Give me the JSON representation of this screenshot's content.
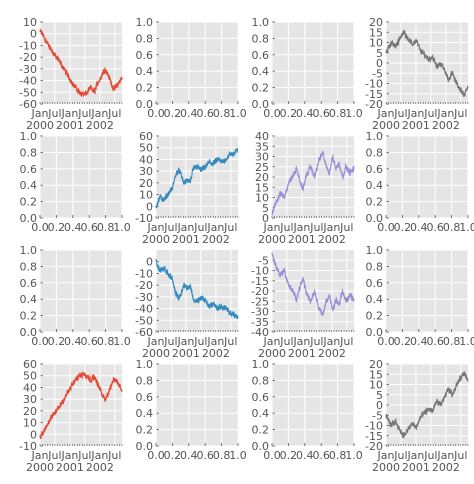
{
  "chart_data": [
    {
      "panel": "r1c1",
      "type": "line",
      "xaxis": "date",
      "x_start": "2000-01-01",
      "x_end": "2002-09-26",
      "x_tick_labels": [
        "Jan",
        "Jul",
        "Jan",
        "Jul",
        "Jan",
        "Jul"
      ],
      "x_year_labels": [
        "2000",
        "2001",
        "2002"
      ],
      "ylim": [
        -60,
        10
      ],
      "y_ticks": [
        10,
        0,
        -10,
        -20,
        -30,
        -40,
        -50,
        -60
      ],
      "color": "#E24A33",
      "keypoints": [
        [
          0,
          2
        ],
        [
          0.03,
          0
        ],
        [
          0.07,
          -6
        ],
        [
          0.12,
          -12
        ],
        [
          0.18,
          -18
        ],
        [
          0.24,
          -24
        ],
        [
          0.3,
          -31
        ],
        [
          0.36,
          -38
        ],
        [
          0.42,
          -45
        ],
        [
          0.48,
          -50
        ],
        [
          0.54,
          -52
        ],
        [
          0.58,
          -50
        ],
        [
          0.62,
          -46
        ],
        [
          0.66,
          -50
        ],
        [
          0.7,
          -43
        ],
        [
          0.75,
          -36
        ],
        [
          0.79,
          -30
        ],
        [
          0.83,
          -35
        ],
        [
          0.87,
          -42
        ],
        [
          0.9,
          -48
        ],
        [
          0.94,
          -44
        ],
        [
          1.0,
          -38
        ]
      ]
    },
    {
      "panel": "r1c2",
      "type": "empty",
      "ylim": [
        0,
        1
      ],
      "y_ticks": [
        0,
        0.2,
        0.4,
        0.6,
        0.8,
        1
      ],
      "xlim": [
        0,
        1
      ],
      "x_ticks": [
        0,
        0.2,
        0.4,
        0.6,
        0.8,
        1
      ],
      "y_tick_labels": [
        "0.0",
        "0.2",
        "0.4",
        "0.6",
        "0.8",
        "1.0"
      ],
      "x_tick_labels": [
        "0.0",
        "0.2",
        "0.4",
        "0.6",
        "0.8",
        "1.0"
      ]
    },
    {
      "panel": "r1c3",
      "type": "empty",
      "ylim": [
        0,
        1
      ],
      "y_ticks": [
        0,
        0.2,
        0.4,
        0.6,
        0.8,
        1
      ],
      "xlim": [
        0,
        1
      ],
      "x_ticks": [
        0,
        0.2,
        0.4,
        0.6,
        0.8,
        1
      ],
      "y_tick_labels": [
        "0.0",
        "0.2",
        "0.4",
        "0.6",
        "0.8",
        "1.0"
      ],
      "x_tick_labels": [
        "0.0",
        "0.2",
        "0.4",
        "0.6",
        "0.8",
        "1.0"
      ]
    },
    {
      "panel": "r1c4",
      "type": "line",
      "xaxis": "date",
      "x_start": "2000-01-01",
      "x_end": "2002-09-26",
      "x_tick_labels": [
        "Jan",
        "Jul",
        "Jan",
        "Jul",
        "Jan",
        "Jul"
      ],
      "x_year_labels": [
        "2000",
        "2001",
        "2002"
      ],
      "ylim": [
        -20,
        20
      ],
      "y_ticks": [
        20,
        15,
        10,
        5,
        0,
        -5,
        -10,
        -15,
        -20
      ],
      "color": "#777777",
      "keypoints": [
        [
          0,
          5
        ],
        [
          0.06,
          10
        ],
        [
          0.12,
          8
        ],
        [
          0.18,
          13
        ],
        [
          0.22,
          15
        ],
        [
          0.27,
          12
        ],
        [
          0.32,
          9
        ],
        [
          0.37,
          11
        ],
        [
          0.42,
          6
        ],
        [
          0.47,
          4
        ],
        [
          0.52,
          2
        ],
        [
          0.57,
          3
        ],
        [
          0.62,
          -2
        ],
        [
          0.66,
          0
        ],
        [
          0.71,
          -3
        ],
        [
          0.76,
          -8
        ],
        [
          0.81,
          -5
        ],
        [
          0.86,
          -10
        ],
        [
          0.91,
          -13
        ],
        [
          0.96,
          -16
        ],
        [
          1.0,
          -11
        ]
      ]
    },
    {
      "panel": "r2c1",
      "type": "empty",
      "ylim": [
        0,
        1
      ],
      "y_ticks": [
        0,
        0.2,
        0.4,
        0.6,
        0.8,
        1
      ],
      "xlim": [
        0,
        1
      ],
      "x_ticks": [
        0,
        0.2,
        0.4,
        0.6,
        0.8,
        1
      ],
      "y_tick_labels": [
        "0.0",
        "0.2",
        "0.4",
        "0.6",
        "0.8",
        "1.0"
      ],
      "x_tick_labels": [
        "0.0",
        "0.2",
        "0.4",
        "0.6",
        "0.8",
        "1.0"
      ]
    },
    {
      "panel": "r2c2",
      "type": "line",
      "xaxis": "date",
      "x_start": "2000-01-01",
      "x_end": "2002-09-26",
      "x_tick_labels": [
        "Jan",
        "Jul",
        "Jan",
        "Jul",
        "Jan",
        "Jul"
      ],
      "x_year_labels": [
        "2000",
        "2001",
        "2002"
      ],
      "ylim": [
        -10,
        60
      ],
      "y_ticks": [
        60,
        50,
        40,
        30,
        20,
        10,
        0,
        -10
      ],
      "color": "#348ABD",
      "keypoints": [
        [
          0,
          0
        ],
        [
          0.05,
          8
        ],
        [
          0.1,
          5
        ],
        [
          0.15,
          11
        ],
        [
          0.2,
          15
        ],
        [
          0.24,
          27
        ],
        [
          0.28,
          31
        ],
        [
          0.31,
          26
        ],
        [
          0.34,
          20
        ],
        [
          0.38,
          22
        ],
        [
          0.42,
          21
        ],
        [
          0.46,
          33
        ],
        [
          0.5,
          34
        ],
        [
          0.55,
          31
        ],
        [
          0.6,
          33
        ],
        [
          0.65,
          38
        ],
        [
          0.7,
          36
        ],
        [
          0.75,
          40
        ],
        [
          0.8,
          38
        ],
        [
          0.85,
          40
        ],
        [
          0.9,
          44
        ],
        [
          0.95,
          45
        ],
        [
          1.0,
          48
        ]
      ]
    },
    {
      "panel": "r2c3",
      "type": "line",
      "xaxis": "date",
      "x_start": "2000-01-01",
      "x_end": "2002-09-26",
      "x_tick_labels": [
        "Jan",
        "Jul",
        "Jan",
        "Jul",
        "Jan",
        "Jul"
      ],
      "x_year_labels": [
        "2000",
        "2001",
        "2002"
      ],
      "ylim": [
        0,
        40
      ],
      "y_ticks": [
        40,
        35,
        30,
        25,
        20,
        15,
        10,
        5,
        0
      ],
      "color": "#988ED5",
      "keypoints": [
        [
          0,
          2
        ],
        [
          0.05,
          8
        ],
        [
          0.1,
          12
        ],
        [
          0.15,
          10
        ],
        [
          0.2,
          17
        ],
        [
          0.25,
          20
        ],
        [
          0.3,
          24
        ],
        [
          0.34,
          18
        ],
        [
          0.38,
          14
        ],
        [
          0.42,
          21
        ],
        [
          0.47,
          25
        ],
        [
          0.52,
          20
        ],
        [
          0.57,
          28
        ],
        [
          0.62,
          32
        ],
        [
          0.66,
          25
        ],
        [
          0.7,
          22
        ],
        [
          0.74,
          30
        ],
        [
          0.78,
          24
        ],
        [
          0.82,
          27
        ],
        [
          0.86,
          20
        ],
        [
          0.9,
          25
        ],
        [
          0.95,
          22
        ],
        [
          1.0,
          24
        ]
      ]
    },
    {
      "panel": "r2c4",
      "type": "empty",
      "ylim": [
        0,
        1
      ],
      "y_ticks": [
        0,
        0.2,
        0.4,
        0.6,
        0.8,
        1
      ],
      "xlim": [
        0,
        1
      ],
      "x_ticks": [
        0,
        0.2,
        0.4,
        0.6,
        0.8,
        1
      ],
      "y_tick_labels": [
        "0.0",
        "0.2",
        "0.4",
        "0.6",
        "0.8",
        "1.0"
      ],
      "x_tick_labels": [
        "0.0",
        "0.2",
        "0.4",
        "0.6",
        "0.8",
        "1.0"
      ]
    },
    {
      "panel": "r3c1",
      "type": "empty",
      "ylim": [
        0,
        1
      ],
      "y_ticks": [
        0,
        0.2,
        0.4,
        0.6,
        0.8,
        1
      ],
      "xlim": [
        0,
        1
      ],
      "x_ticks": [
        0,
        0.2,
        0.4,
        0.6,
        0.8,
        1
      ],
      "y_tick_labels": [
        "0.0",
        "0.2",
        "0.4",
        "0.6",
        "0.8",
        "1.0"
      ],
      "x_tick_labels": [
        "0.0",
        "0.2",
        "0.4",
        "0.6",
        "0.8",
        "1.0"
      ]
    },
    {
      "panel": "r3c2",
      "type": "line",
      "xaxis": "date",
      "x_start": "2000-01-01",
      "x_end": "2002-09-26",
      "x_tick_labels": [
        "Jan",
        "Jul",
        "Jan",
        "Jul",
        "Jan",
        "Jul"
      ],
      "x_year_labels": [
        "2000",
        "2001",
        "2002"
      ],
      "ylim": [
        -60,
        10
      ],
      "y_ticks": [
        0,
        -10,
        -20,
        -30,
        -40,
        -50,
        -60
      ],
      "color": "#348ABD",
      "keypoints": [
        [
          0,
          0
        ],
        [
          0.05,
          -8
        ],
        [
          0.1,
          -5
        ],
        [
          0.15,
          -11
        ],
        [
          0.2,
          -15
        ],
        [
          0.24,
          -27
        ],
        [
          0.28,
          -31
        ],
        [
          0.31,
          -26
        ],
        [
          0.34,
          -20
        ],
        [
          0.38,
          -22
        ],
        [
          0.42,
          -21
        ],
        [
          0.46,
          -33
        ],
        [
          0.5,
          -34
        ],
        [
          0.55,
          -31
        ],
        [
          0.6,
          -33
        ],
        [
          0.65,
          -38
        ],
        [
          0.7,
          -36
        ],
        [
          0.75,
          -40
        ],
        [
          0.8,
          -38
        ],
        [
          0.85,
          -40
        ],
        [
          0.9,
          -44
        ],
        [
          0.95,
          -45
        ],
        [
          1.0,
          -48
        ]
      ]
    },
    {
      "panel": "r3c3",
      "type": "line",
      "xaxis": "date",
      "x_start": "2000-01-01",
      "x_end": "2002-09-26",
      "x_tick_labels": [
        "Jan",
        "Jul",
        "Jan",
        "Jul",
        "Jan",
        "Jul"
      ],
      "x_year_labels": [
        "2000",
        "2001",
        "2002"
      ],
      "ylim": [
        -40,
        0
      ],
      "y_ticks": [
        -5,
        -10,
        -15,
        -20,
        -25,
        -30,
        -35,
        -40
      ],
      "color": "#988ED5",
      "keypoints": [
        [
          0,
          -2
        ],
        [
          0.05,
          -8
        ],
        [
          0.1,
          -12
        ],
        [
          0.15,
          -10
        ],
        [
          0.2,
          -17
        ],
        [
          0.25,
          -20
        ],
        [
          0.3,
          -24
        ],
        [
          0.34,
          -18
        ],
        [
          0.38,
          -14
        ],
        [
          0.42,
          -21
        ],
        [
          0.47,
          -25
        ],
        [
          0.52,
          -20
        ],
        [
          0.57,
          -28
        ],
        [
          0.62,
          -32
        ],
        [
          0.66,
          -25
        ],
        [
          0.7,
          -22
        ],
        [
          0.74,
          -30
        ],
        [
          0.78,
          -24
        ],
        [
          0.82,
          -27
        ],
        [
          0.86,
          -20
        ],
        [
          0.9,
          -25
        ],
        [
          0.95,
          -22
        ],
        [
          1.0,
          -24
        ]
      ]
    },
    {
      "panel": "r3c4",
      "type": "empty",
      "ylim": [
        0,
        1
      ],
      "y_ticks": [
        0,
        0.2,
        0.4,
        0.6,
        0.8,
        1
      ],
      "xlim": [
        0,
        1
      ],
      "x_ticks": [
        0,
        0.2,
        0.4,
        0.6,
        0.8,
        1
      ],
      "y_tick_labels": [
        "0.0",
        "0.2",
        "0.4",
        "0.6",
        "0.8",
        "1.0"
      ],
      "x_tick_labels": [
        "0.0",
        "0.2",
        "0.4",
        "0.6",
        "0.8",
        "1.0"
      ]
    },
    {
      "panel": "r4c1",
      "type": "line",
      "xaxis": "date",
      "x_start": "2000-01-01",
      "x_end": "2002-09-26",
      "x_tick_labels": [
        "Jan",
        "Jul",
        "Jan",
        "Jul",
        "Jan",
        "Jul"
      ],
      "x_year_labels": [
        "2000",
        "2001",
        "2002"
      ],
      "ylim": [
        -10,
        60
      ],
      "y_ticks": [
        60,
        50,
        40,
        30,
        20,
        10,
        0,
        -10
      ],
      "color": "#E24A33",
      "keypoints": [
        [
          0,
          -2
        ],
        [
          0.03,
          0
        ],
        [
          0.07,
          6
        ],
        [
          0.12,
          12
        ],
        [
          0.18,
          18
        ],
        [
          0.24,
          24
        ],
        [
          0.3,
          31
        ],
        [
          0.36,
          38
        ],
        [
          0.42,
          45
        ],
        [
          0.48,
          50
        ],
        [
          0.54,
          52
        ],
        [
          0.58,
          50
        ],
        [
          0.62,
          46
        ],
        [
          0.66,
          50
        ],
        [
          0.7,
          43
        ],
        [
          0.75,
          36
        ],
        [
          0.79,
          30
        ],
        [
          0.83,
          35
        ],
        [
          0.87,
          42
        ],
        [
          0.9,
          48
        ],
        [
          0.94,
          44
        ],
        [
          1.0,
          38
        ]
      ]
    },
    {
      "panel": "r4c2",
      "type": "empty",
      "ylim": [
        0,
        1
      ],
      "y_ticks": [
        0,
        0.2,
        0.4,
        0.6,
        0.8,
        1
      ],
      "xlim": [
        0,
        1
      ],
      "x_ticks": [
        0,
        0.2,
        0.4,
        0.6,
        0.8,
        1
      ],
      "y_tick_labels": [
        "0.0",
        "0.2",
        "0.4",
        "0.6",
        "0.8",
        "1.0"
      ],
      "x_tick_labels": [
        "0.0",
        "0.2",
        "0.4",
        "0.6",
        "0.8",
        "1.0"
      ]
    },
    {
      "panel": "r4c3",
      "type": "empty",
      "ylim": [
        0,
        1
      ],
      "y_ticks": [
        0,
        0.2,
        0.4,
        0.6,
        0.8,
        1
      ],
      "xlim": [
        0,
        1
      ],
      "x_ticks": [
        0,
        0.2,
        0.4,
        0.6,
        0.8,
        1
      ],
      "y_tick_labels": [
        "0.0",
        "0.2",
        "0.4",
        "0.6",
        "0.8",
        "1.0"
      ],
      "x_tick_labels": [
        "0.0",
        "0.2",
        "0.4",
        "0.6",
        "0.8",
        "1.0"
      ]
    },
    {
      "panel": "r4c4",
      "type": "line",
      "xaxis": "date",
      "x_start": "2000-01-01",
      "x_end": "2002-09-26",
      "x_tick_labels": [
        "Jan",
        "Jul",
        "Jan",
        "Jul",
        "Jan",
        "Jul"
      ],
      "x_year_labels": [
        "2000",
        "2001",
        "2002"
      ],
      "ylim": [
        -20,
        20
      ],
      "y_ticks": [
        20,
        15,
        10,
        5,
        0,
        -5,
        -10,
        -15,
        -20
      ],
      "color": "#777777",
      "keypoints": [
        [
          0,
          -5
        ],
        [
          0.06,
          -10
        ],
        [
          0.12,
          -8
        ],
        [
          0.18,
          -13
        ],
        [
          0.22,
          -15
        ],
        [
          0.27,
          -12
        ],
        [
          0.32,
          -9
        ],
        [
          0.37,
          -11
        ],
        [
          0.42,
          -6
        ],
        [
          0.47,
          -4
        ],
        [
          0.52,
          -2
        ],
        [
          0.57,
          -3
        ],
        [
          0.62,
          2
        ],
        [
          0.66,
          0
        ],
        [
          0.71,
          3
        ],
        [
          0.76,
          8
        ],
        [
          0.81,
          5
        ],
        [
          0.86,
          10
        ],
        [
          0.91,
          13
        ],
        [
          0.96,
          16
        ],
        [
          1.0,
          11
        ]
      ]
    }
  ]
}
